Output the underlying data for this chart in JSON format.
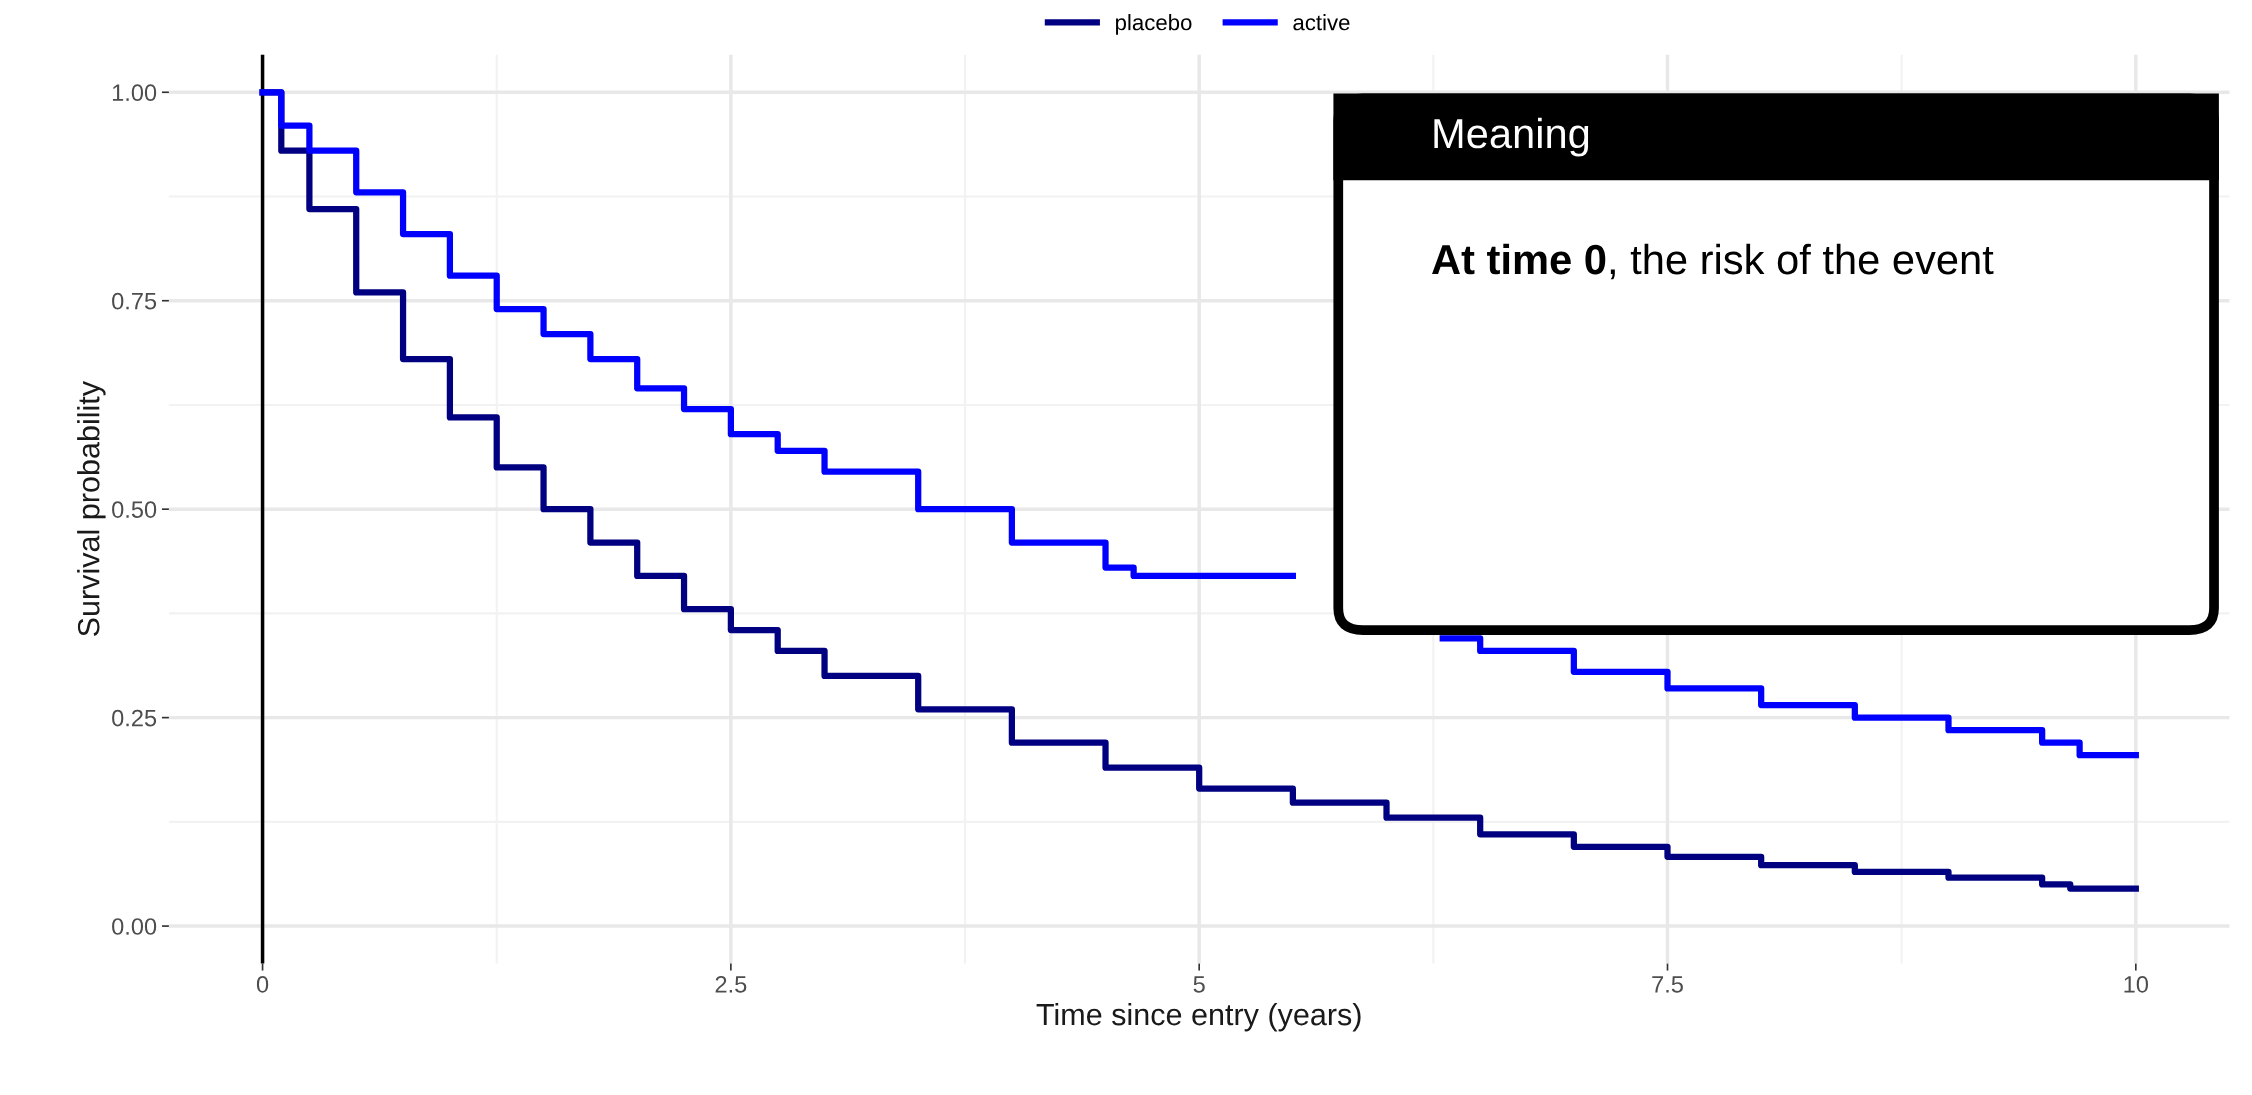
{
  "chart_data": {
    "type": "step",
    "xlabel": "Time since entry (years)",
    "ylabel": "Survival probability",
    "xlim": [
      -0.5,
      10.5
    ],
    "ylim": [
      -0.045,
      1.045
    ],
    "xticks": [
      0,
      2.5,
      5,
      7.5,
      10
    ],
    "yticks": [
      {
        "value": 0,
        "label": "0.00"
      },
      {
        "value": 0.25,
        "label": "0.25"
      },
      {
        "value": 0.5,
        "label": "0.50"
      },
      {
        "value": 0.75,
        "label": "0.75"
      },
      {
        "value": 1,
        "label": "1.00"
      }
    ],
    "grid": true,
    "legend": "top",
    "ref_lines": [
      {
        "axis": "x",
        "value": 0,
        "color": "#000000"
      }
    ],
    "annotations": [
      "Meaning",
      "At time 0",
      ", the risk of the event"
    ],
    "series": [
      {
        "name": "placebo",
        "color": "#000080",
        "x": [
          0,
          0.1,
          0.25,
          0.5,
          0.75,
          1.0,
          1.25,
          1.5,
          1.75,
          2.0,
          2.25,
          2.5,
          2.75,
          3.0,
          3.5,
          4.0,
          4.5,
          5.0,
          5.5,
          6.0,
          6.5,
          7.0,
          7.5,
          8.0,
          8.5,
          9.0,
          9.5,
          9.65,
          10
        ],
        "values": [
          1.0,
          0.93,
          0.86,
          0.76,
          0.68,
          0.61,
          0.55,
          0.5,
          0.46,
          0.42,
          0.38,
          0.355,
          0.33,
          0.3,
          0.26,
          0.22,
          0.19,
          0.165,
          0.148,
          0.13,
          0.11,
          0.095,
          0.083,
          0.073,
          0.065,
          0.058,
          0.05,
          0.045,
          0.045
        ]
      },
      {
        "name": "active",
        "color": "#0000ff",
        "x": [
          0,
          0.1,
          0.25,
          0.5,
          0.75,
          1.0,
          1.25,
          1.5,
          1.75,
          2.0,
          2.25,
          2.5,
          2.75,
          3.0,
          3.5,
          4.0,
          4.5,
          4.65,
          5.5,
          6.3,
          6.5,
          7.0,
          7.5,
          8.0,
          8.5,
          9.0,
          9.5,
          9.7,
          10
        ],
        "values": [
          1.0,
          0.96,
          0.93,
          0.88,
          0.83,
          0.78,
          0.74,
          0.71,
          0.68,
          0.645,
          0.62,
          0.59,
          0.57,
          0.545,
          0.5,
          0.46,
          0.43,
          0.42,
          null,
          0.345,
          0.33,
          0.305,
          0.285,
          0.265,
          0.25,
          0.235,
          0.22,
          0.205,
          0.205
        ]
      }
    ]
  }
}
